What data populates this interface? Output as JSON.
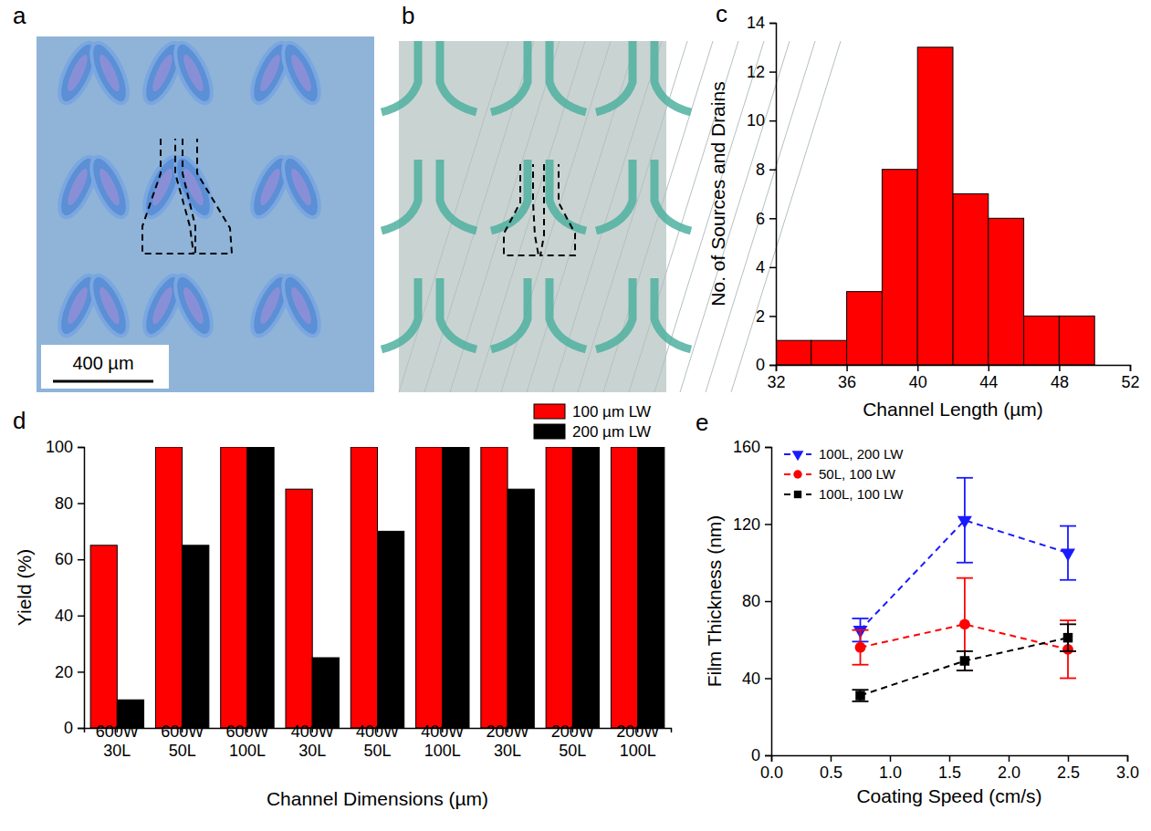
{
  "images": [
    {
      "label": "a",
      "scale_bar": "400 µm"
    },
    {
      "label": "b"
    }
  ],
  "chart_data": [
    {
      "type": "histogram",
      "label": "c",
      "x_label": "Channel Length (µm)",
      "y_label": "No. of Sources and Drains",
      "bins": [
        32,
        34,
        36,
        38,
        40,
        42,
        44,
        46,
        48,
        50
      ],
      "counts": [
        1,
        1,
        3,
        8,
        13,
        7,
        6,
        2,
        2
      ],
      "color": "#ff0000",
      "xlim": [
        32,
        52
      ],
      "xticks": [
        32,
        36,
        40,
        44,
        48,
        52
      ],
      "ylim": [
        0,
        14
      ],
      "yticks": [
        0,
        2,
        4,
        6,
        8,
        10,
        12,
        14
      ]
    },
    {
      "type": "bar",
      "label": "d",
      "x_label": "Channel Dimensions (µm)",
      "y_label": "Yield (%)",
      "categories": [
        "600W\n30L",
        "600W\n50L",
        "600W\n100L",
        "400W\n30L",
        "400W\n50L",
        "400W\n100L",
        "200W\n30L",
        "200W\n50L",
        "200W\n100L"
      ],
      "series": [
        {
          "name": "100 µm LW",
          "color": "#ff0000",
          "values": [
            65,
            100,
            100,
            85,
            100,
            100,
            100,
            100,
            100
          ]
        },
        {
          "name": "200 µm LW",
          "color": "#000000",
          "values": [
            10,
            65,
            100,
            25,
            70,
            100,
            85,
            100,
            100
          ]
        }
      ],
      "ylim": [
        0,
        100
      ],
      "yticks": [
        0,
        20,
        40,
        60,
        80,
        100
      ],
      "legend": "upper right"
    },
    {
      "type": "line",
      "label": "e",
      "x_label": "Coating Speed (cm/s)",
      "y_label": "Film Thickness (nm)",
      "x": [
        0.75,
        1.63,
        2.5
      ],
      "series": [
        {
          "name": "100L, 200 LW",
          "color": "#1a1aff",
          "marker": "triangle-down",
          "line_style": "dashed",
          "values": [
            65,
            122,
            105
          ],
          "errors": [
            6,
            22,
            14
          ]
        },
        {
          "name": "50L, 100 LW",
          "color": "#ff0000",
          "marker": "circle",
          "line_style": "dashed",
          "values": [
            56,
            68,
            55
          ],
          "errors": [
            9,
            24,
            15
          ]
        },
        {
          "name": "100L, 100 LW",
          "color": "#000000",
          "marker": "square",
          "line_style": "dashed",
          "values": [
            31,
            49,
            61
          ],
          "errors": [
            3,
            5,
            7
          ]
        }
      ],
      "xlim": [
        0,
        3
      ],
      "xticks": [
        {
          "value": 0,
          "label": "0.0"
        },
        0.5,
        {
          "value": 1,
          "label": "1.0"
        },
        1.5,
        {
          "value": 2,
          "label": "2.0"
        },
        2.5,
        {
          "value": 3,
          "label": "3.0"
        }
      ],
      "ylim": [
        0,
        160
      ],
      "yticks": [
        0,
        40,
        80,
        120,
        160
      ],
      "legend": "upper left"
    }
  ]
}
